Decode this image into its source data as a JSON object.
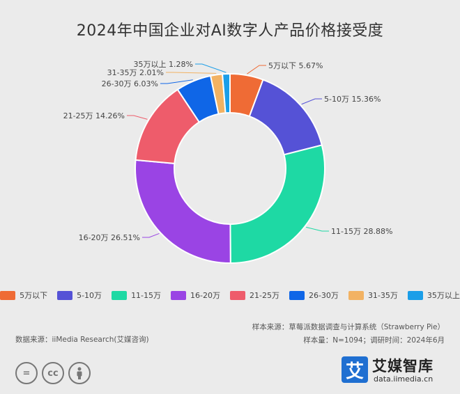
{
  "chart_data": {
    "type": "pie",
    "title": "2024年中国企业对AI数字人产品价格接受度",
    "categories": [
      "5万以下",
      "5-10万",
      "11-15万",
      "16-20万",
      "21-25万",
      "26-30万",
      "31-35万",
      "35万以上"
    ],
    "values": [
      5.67,
      15.36,
      28.88,
      26.51,
      14.26,
      6.03,
      2.01,
      1.28
    ],
    "value_labels": [
      "5.67%",
      "15.36%",
      "28.88%",
      "26.51%",
      "14.26%",
      "6.03%",
      "2.01%",
      "1.28%"
    ],
    "colors": [
      "#ef6b35",
      "#5552d6",
      "#1ed9a4",
      "#9a44e4",
      "#ee5c6b",
      "#0f66e7",
      "#f2b263",
      "#1b9ee8"
    ],
    "legend_position": "bottom",
    "style": "donut"
  },
  "source": {
    "sample_source": "样本来源：草莓派数据调查与计算系统（Strawberry Pie）",
    "sample_info": "样本量：N=1094；调研时间：2024年6月",
    "data_source": "数据来源：iiMedia Research(艾媒咨询)"
  },
  "logo": {
    "mark": "艾",
    "name": "艾媒智库",
    "url": "data.iimedia.cn"
  },
  "icons": [
    "equals-icon",
    "cc-icon",
    "person-icon"
  ]
}
